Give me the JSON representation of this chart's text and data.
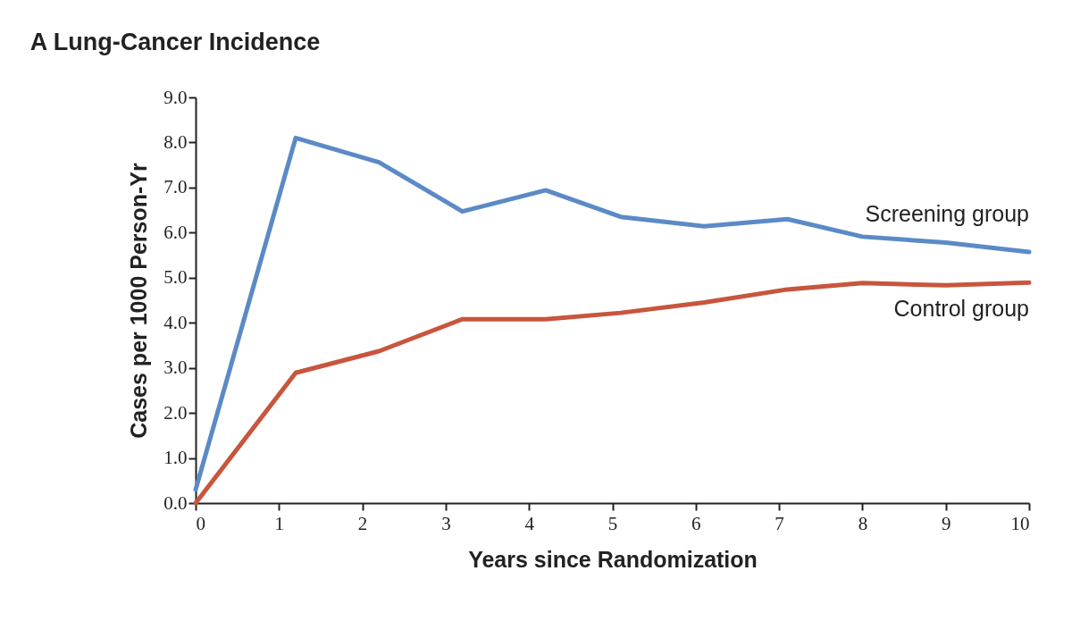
{
  "chart_data": {
    "type": "line",
    "title": "A Lung-Cancer Incidence",
    "xlabel": "Years since Randomization",
    "ylabel": "Cases per 1000 Person-Yr",
    "x": [
      0,
      1.2,
      2.2,
      3.2,
      4.2,
      5.1,
      6.1,
      7.1,
      8.0,
      9.0,
      10.0
    ],
    "series": [
      {
        "name": "Screening group",
        "color": "#5b8ac6",
        "values": [
          0.3,
          8.1,
          7.56,
          6.47,
          6.94,
          6.35,
          6.14,
          6.3,
          5.91,
          5.78,
          5.57
        ]
      },
      {
        "name": "Control group",
        "color": "#c8553d",
        "values": [
          0,
          2.89,
          3.37,
          4.08,
          4.08,
          4.22,
          4.45,
          4.74,
          4.88,
          4.83,
          4.89
        ]
      }
    ],
    "xlim": [
      0,
      10
    ],
    "xticks": [
      0,
      1,
      2,
      3,
      4,
      5,
      6,
      7,
      8,
      9,
      10
    ],
    "ylim": [
      0,
      9
    ],
    "yticks": [
      {
        "value": 0,
        "label": "0.0"
      },
      {
        "value": 1,
        "label": "1.0"
      },
      {
        "value": 2,
        "label": "2.0"
      },
      {
        "value": 3,
        "label": "3.0"
      },
      {
        "value": 4,
        "label": "4.0"
      },
      {
        "value": 5,
        "label": "5.0"
      },
      {
        "value": 6,
        "label": "6.0"
      },
      {
        "value": 7,
        "label": "7.0"
      },
      {
        "value": 8,
        "label": "8.0"
      },
      {
        "value": 9,
        "label": "9.0"
      }
    ],
    "grid": false,
    "legend": false,
    "marker": "none",
    "line_style": "solid"
  }
}
